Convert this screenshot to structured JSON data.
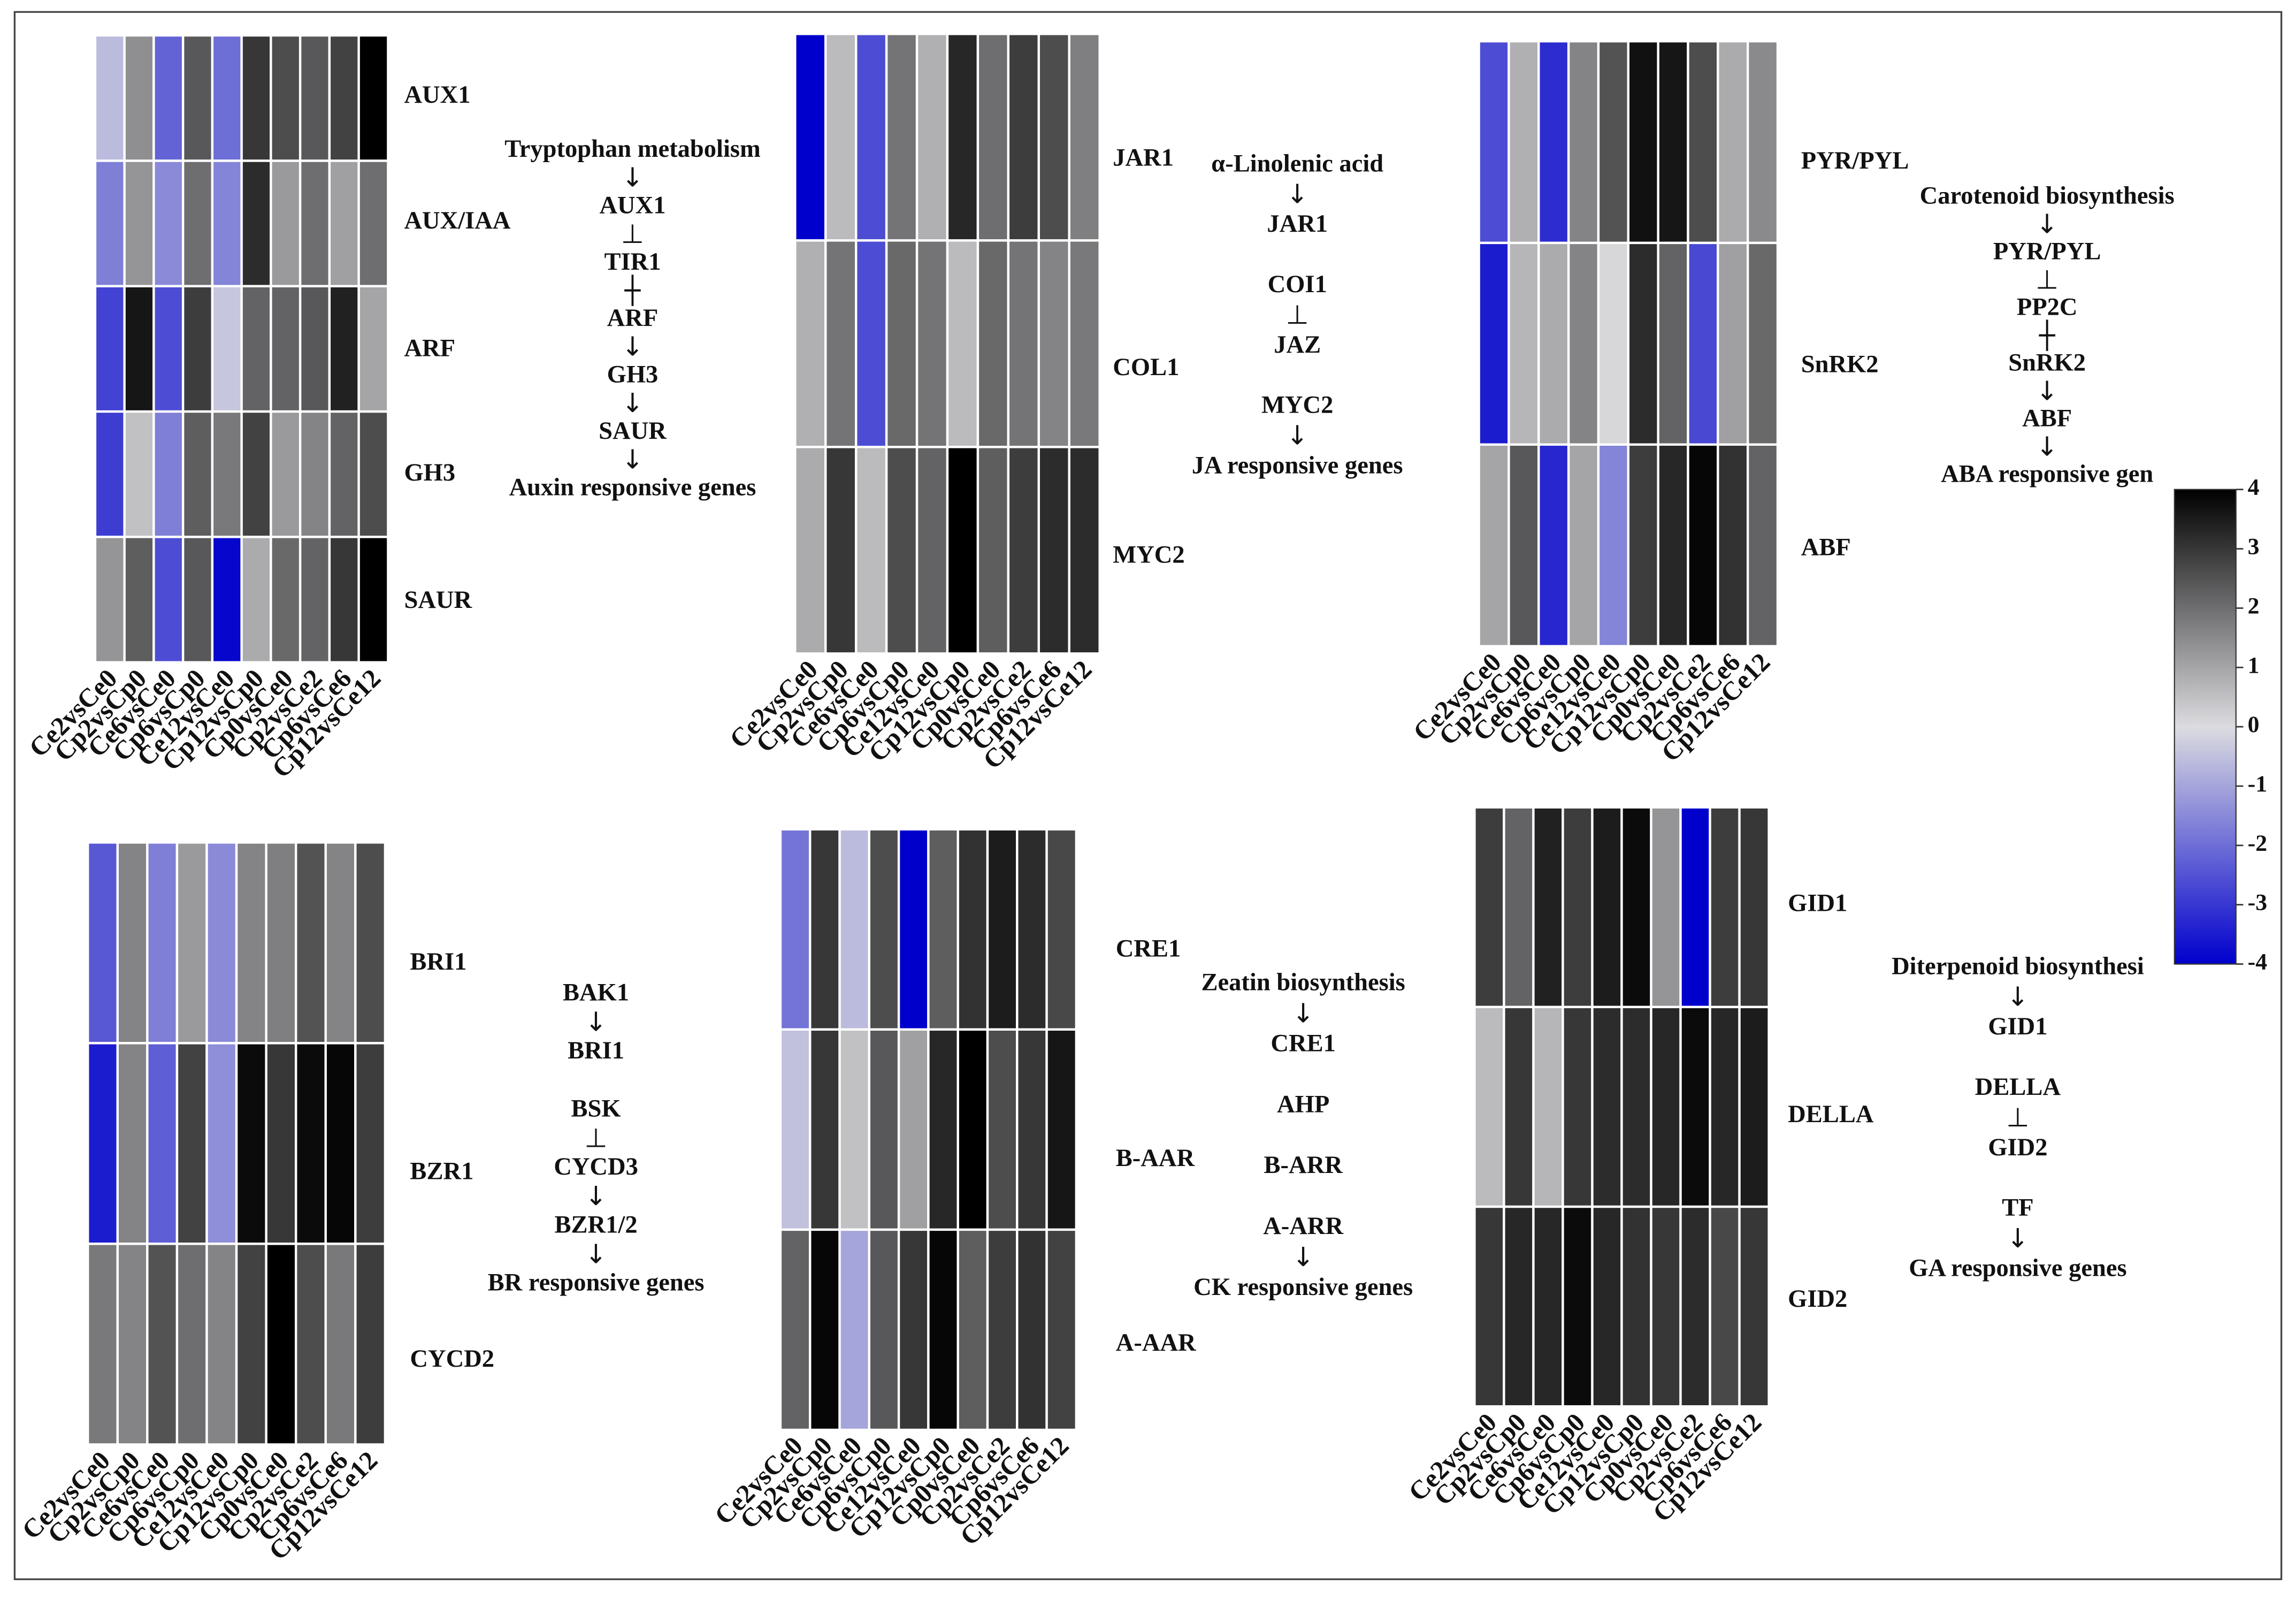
{
  "colorbar": {
    "range": [
      -4,
      4
    ],
    "ticks": [
      4,
      3,
      2,
      1,
      0,
      -1,
      -2,
      -3,
      -4
    ],
    "colors": {
      "high": "#000000",
      "mid": "#dcdce0",
      "low": "#0000cd"
    }
  },
  "chart_data": [
    {
      "type": "heatmap",
      "rows": [
        "AUX1",
        "AUX/IAA",
        "ARF",
        "GH3",
        "SAUR"
      ],
      "columns": [
        "Ce2vsCe0",
        "Cp2vsCp0",
        "Ce6vsCe0",
        "Cp6vsCp0",
        "Ce12vsCe0",
        "Cp12vsCp0",
        "Cp0vsCe0",
        "Cp2vsCe2",
        "Cp6vsCe6",
        "Cp12vsCe12"
      ],
      "values": [
        [
          -0.6,
          1.4,
          -2.2,
          2.4,
          -2.0,
          3.0,
          2.6,
          2.4,
          2.8,
          4.0
        ],
        [
          -1.7,
          1.3,
          -1.5,
          2.0,
          -1.6,
          3.2,
          1.2,
          2.0,
          1.1,
          2.0
        ],
        [
          -2.8,
          3.6,
          -2.6,
          2.9,
          -0.4,
          2.2,
          2.2,
          2.4,
          3.4,
          1.0
        ],
        [
          -2.9,
          0.5,
          -1.7,
          2.3,
          1.8,
          2.8,
          1.2,
          1.6,
          2.2,
          2.6
        ],
        [
          1.3,
          2.3,
          -2.6,
          2.4,
          -3.9,
          0.9,
          2.1,
          2.2,
          3.0,
          4.0
        ]
      ],
      "pathway": {
        "nodes": [
          "Tryptophan metabolism",
          "AUX1",
          "TIR1",
          "ARF",
          "GH3",
          "SAUR",
          "Auxin responsive genes"
        ],
        "connectors": [
          "↓",
          "⊥",
          "┼",
          "↓",
          "↓",
          "↓"
        ]
      }
    },
    {
      "type": "heatmap",
      "rows": [
        "JAR1",
        "COL1",
        "MYC2"
      ],
      "columns": [
        "Ce2vsCe0",
        "Cp2vsCp0",
        "Ce6vsCe0",
        "Cp6vsCp0",
        "Ce12vsCe0",
        "Cp12vsCp0",
        "Cp0vsCe0",
        "Cp2vsCe2",
        "Cp6vsCe6",
        "Cp12vsCe12"
      ],
      "values": [
        [
          -4.0,
          0.6,
          -2.6,
          1.9,
          0.8,
          3.3,
          2.0,
          2.9,
          2.6,
          1.7
        ],
        [
          0.8,
          1.9,
          -2.6,
          2.1,
          1.9,
          0.6,
          2.1,
          1.9,
          1.6,
          1.8
        ],
        [
          0.9,
          3.0,
          0.6,
          2.6,
          2.2,
          4.0,
          2.3,
          2.9,
          3.2,
          3.2
        ]
      ],
      "pathway": {
        "nodes": [
          "α-Linolenic acid",
          "JAR1",
          "COI1",
          "JAZ",
          "MYC2",
          "JA responsive genes"
        ],
        "connectors": [
          "↓",
          null,
          "⊥",
          null,
          "↓"
        ]
      }
    },
    {
      "type": "heatmap",
      "rows": [
        "PYR/PYL",
        "SnRK2",
        "ABF"
      ],
      "columns": [
        "Ce2vsCe0",
        "Cp2vsCp0",
        "Ce6vsCe0",
        "Cp6vsCp0",
        "Ce12vsCe0",
        "Cp12vsCp0",
        "Cp0vsCe0",
        "Cp2vsCe2",
        "Cp6vsCe6",
        "Cp12vsCe12"
      ],
      "values": [
        [
          -2.6,
          0.8,
          -3.2,
          1.6,
          2.5,
          3.7,
          3.6,
          2.6,
          0.9,
          1.5
        ],
        [
          -3.5,
          0.7,
          0.9,
          1.6,
          0.1,
          3.2,
          2.2,
          -2.7,
          1.1,
          2.1
        ],
        [
          1.0,
          2.4,
          -3.3,
          1.0,
          -1.6,
          2.9,
          3.3,
          3.9,
          3.1,
          2.2
        ]
      ],
      "pathway": {
        "nodes": [
          "Carotenoid biosynthesis",
          "PYR/PYL",
          "PP2C",
          "SnRK2",
          "ABF",
          "ABA responsive gen"
        ],
        "connectors": [
          "↓",
          "⊥",
          "┼",
          "↓",
          "↓"
        ]
      }
    },
    {
      "type": "heatmap",
      "rows": [
        "BRI1",
        "BZR1",
        "CYCD2"
      ],
      "columns": [
        "Ce2vsCe0",
        "Cp2vsCp0",
        "Ce6vsCe0",
        "Cp6vsCp0",
        "Ce12vsCe0",
        "Cp12vsCp0",
        "Cp0vsCe0",
        "Cp2vsCe2",
        "Cp6vsCe6",
        "Cp12vsCe12"
      ],
      "values": [
        [
          -2.4,
          1.6,
          -1.7,
          1.2,
          -1.5,
          1.6,
          1.7,
          2.5,
          1.6,
          2.6
        ],
        [
          -3.5,
          1.6,
          -2.3,
          2.8,
          -1.4,
          3.8,
          3.0,
          3.8,
          3.9,
          2.9
        ],
        [
          1.8,
          1.6,
          2.5,
          2.0,
          1.6,
          2.8,
          4.0,
          2.6,
          1.8,
          2.9
        ]
      ],
      "pathway": {
        "nodes": [
          "BAK1",
          "BRI1",
          "BSK",
          "CYCD3",
          "BZR1/2",
          "BR responsive genes"
        ],
        "connectors": [
          "↓",
          null,
          "⊥",
          "↓",
          "↓"
        ]
      }
    },
    {
      "type": "heatmap",
      "rows": [
        "CRE1",
        "B-AAR",
        "A-AAR"
      ],
      "columns": [
        "Ce2vsCe0",
        "Cp2vsCp0",
        "Ce6vsCe0",
        "Cp6vsCp0",
        "Ce12vsCe0",
        "Cp12vsCp0",
        "Cp0vsCe0",
        "Cp2vsCe2",
        "Cp6vsCe6",
        "Cp12vsCe12"
      ],
      "values": [
        [
          -1.9,
          3.0,
          -0.6,
          2.6,
          -4.0,
          2.3,
          3.1,
          3.5,
          3.2,
          2.7
        ],
        [
          -0.5,
          3.0,
          0.5,
          2.4,
          1.1,
          3.3,
          4.0,
          2.6,
          3.0,
          3.6
        ],
        [
          2.2,
          3.9,
          -1.0,
          2.4,
          3.0,
          3.9,
          2.3,
          2.9,
          3.1,
          2.8
        ]
      ],
      "pathway": {
        "nodes": [
          "Zeatin biosynthesis",
          "CRE1",
          "AHP",
          "B-ARR",
          "A-ARR",
          "CK responsive genes"
        ],
        "connectors": [
          "↓",
          null,
          null,
          null,
          "↓"
        ]
      }
    },
    {
      "type": "heatmap",
      "rows": [
        "GID1",
        "DELLA",
        "GID2"
      ],
      "columns": [
        "Ce2vsCe0",
        "Cp2vsCp0",
        "Ce6vsCe0",
        "Cp6vsCp0",
        "Ce12vsCe0",
        "Cp12vsCp0",
        "Cp0vsCe0",
        "Cp2vsCe2",
        "Cp6vsCe6",
        "Cp12vsCe12"
      ],
      "values": [
        [
          2.9,
          2.2,
          3.4,
          2.9,
          3.5,
          3.8,
          1.3,
          -4.0,
          2.9,
          3.0
        ],
        [
          0.6,
          3.0,
          0.7,
          3.0,
          3.2,
          3.2,
          3.3,
          3.8,
          3.3,
          3.5
        ],
        [
          3.0,
          3.3,
          3.3,
          3.8,
          3.3,
          3.1,
          3.0,
          3.2,
          2.7,
          3.0
        ]
      ],
      "pathway": {
        "nodes": [
          "Diterpenoid biosynthesi",
          "GID1",
          "DELLA",
          "GID2",
          "TF",
          "GA responsive genes"
        ],
        "connectors": [
          "↓",
          null,
          "⊥",
          null,
          "↓"
        ]
      }
    }
  ]
}
